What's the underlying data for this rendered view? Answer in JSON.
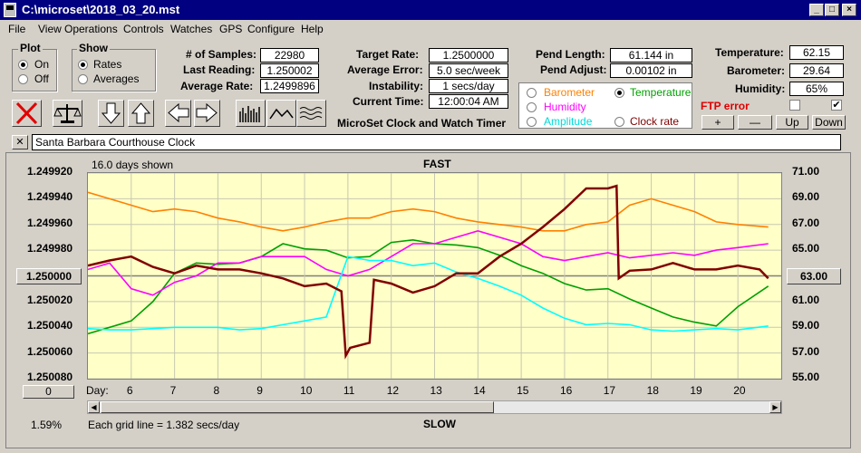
{
  "window": {
    "title": "C:\\microset\\2018_03_20.mst"
  },
  "menu": [
    "File",
    "View",
    "Operations",
    "Controls",
    "Watches",
    "GPS",
    "Configure",
    "Help"
  ],
  "plot": {
    "label": "Plot",
    "on": "On",
    "off": "Off",
    "selected": "On"
  },
  "show": {
    "label": "Show",
    "rates": "Rates",
    "averages": "Averages",
    "selected": "Rates"
  },
  "stats": {
    "samples_label": "# of Samples:",
    "samples": "22980",
    "last_label": "Last Reading:",
    "last": "1.250002",
    "avg_label": "Average Rate:",
    "avg": "1.2499896"
  },
  "target": {
    "target_label": "Target Rate:",
    "target": "1.2500000",
    "avgerr_label": "Average Error:",
    "avgerr": "5.0 sec/week",
    "instab_label": "Instability:",
    "instab": "1 secs/day",
    "time_label": "Current Time:",
    "time": "12:00:04 AM",
    "app_title": "MicroSet Clock and Watch Timer"
  },
  "pend": {
    "length_label": "Pend Length:",
    "length": "61.144 in",
    "adjust_label": "Pend Adjust:",
    "adjust": "0.00102 in"
  },
  "env": {
    "temp_label": "Temperature:",
    "temp": "62.15",
    "baro_label": "Barometer:",
    "baro": "29.64",
    "hum_label": "Humidity:",
    "hum": "65%",
    "ftp": "FTP error"
  },
  "overlay": {
    "barometer": "Barometer",
    "temperature": "Temperature",
    "humidity": "Humidity",
    "amplitude": "Amplitude",
    "clockrate": "Clock rate",
    "selected": "Temperature"
  },
  "adjust_buttons": {
    "plus": "+",
    "minus": "—",
    "up": "Up",
    "down": "Down"
  },
  "watch_name": "Santa Barbara Courthouse Clock",
  "close_x": "✕",
  "colors": {
    "barometer": "#ff8000",
    "temperature": "#00a000",
    "humidity": "#ff00ff",
    "amplitude": "#00ffff",
    "rate": "#800000"
  },
  "chart": {
    "days_shown": "16.0 days shown",
    "top_label": "FAST",
    "bottom_label": "SLOW",
    "grid_note": "Each grid line = 1.382 secs/day",
    "left_value": "1.250000",
    "right_value": "63.00",
    "left_bottom": "0",
    "percent": "1.59%"
  },
  "chart_data": {
    "type": "line",
    "xlabel": "Day:",
    "x_ticks": [
      "6",
      "7",
      "8",
      "9",
      "10",
      "11",
      "12",
      "13",
      "14",
      "15",
      "16",
      "17",
      "18",
      "19",
      "20"
    ],
    "y_left_ticks": [
      "1.249920",
      "1.249940",
      "1.249960",
      "1.249980",
      "1.250000",
      "1.250020",
      "1.250040",
      "1.250060",
      "1.250080"
    ],
    "y_right_ticks": [
      "71.00",
      "69.00",
      "67.00",
      "65.00",
      "63.00",
      "61.00",
      "59.00",
      "57.00",
      "55.00"
    ],
    "ylim_left": [
      1.24992,
      1.25008
    ],
    "ylim_right": [
      55,
      71
    ],
    "xlim": [
      5.0,
      21.0
    ],
    "series": [
      {
        "name": "Barometer",
        "color": "#ff8000",
        "x": [
          5.0,
          5.5,
          6,
          6.5,
          7,
          7.5,
          8,
          8.5,
          9,
          9.5,
          10,
          10.5,
          11,
          11.5,
          12,
          12.5,
          13,
          13.5,
          14,
          14.5,
          15,
          15.5,
          16,
          16.5,
          17,
          17.5,
          18,
          18.5,
          19,
          19.5,
          20,
          20.7
        ],
        "y": [
          1.249935,
          1.24994,
          1.249945,
          1.24995,
          1.249948,
          1.24995,
          1.249955,
          1.249958,
          1.249962,
          1.249965,
          1.249962,
          1.249958,
          1.249955,
          1.249955,
          1.24995,
          1.249948,
          1.24995,
          1.249955,
          1.249958,
          1.24996,
          1.249962,
          1.249965,
          1.249965,
          1.24996,
          1.249958,
          1.249945,
          1.24994,
          1.249945,
          1.24995,
          1.249958,
          1.24996,
          1.249962
        ]
      },
      {
        "name": "Temperature",
        "color": "#00a000",
        "x": [
          5.0,
          5.5,
          6,
          6.5,
          7,
          7.5,
          8,
          8.5,
          9,
          9.5,
          10,
          10.5,
          11,
          11.5,
          12,
          12.5,
          13,
          13.5,
          14,
          14.5,
          15,
          15.5,
          16,
          16.5,
          17,
          17.5,
          18,
          18.5,
          19,
          19.5,
          20,
          20.7
        ],
        "y": [
          58.5,
          59,
          59.5,
          61,
          63.2,
          64,
          63.9,
          64,
          64.5,
          65.5,
          65.1,
          65,
          64.4,
          64.5,
          65.6,
          65.8,
          65.5,
          65.4,
          65.2,
          64.6,
          63.8,
          63.2,
          62.4,
          61.9,
          62,
          61.2,
          60.5,
          59.8,
          59.4,
          59.1,
          60.6,
          62.2
        ]
      },
      {
        "name": "Humidity",
        "color": "#ff00ff",
        "x": [
          5.0,
          5.5,
          6,
          6.5,
          7,
          7.5,
          8,
          8.5,
          9,
          9.5,
          10,
          10.5,
          11,
          11.5,
          12,
          12.5,
          13,
          13.5,
          14,
          14.5,
          15,
          15.5,
          16,
          16.5,
          17,
          17.5,
          18,
          18.5,
          19,
          19.5,
          20,
          20.7
        ],
        "y": [
          63.5,
          64,
          62,
          61.5,
          62.5,
          63,
          64,
          64,
          64.5,
          64.5,
          64.5,
          63.5,
          63,
          63.5,
          64.5,
          65.5,
          65.5,
          66,
          66.5,
          66,
          65.5,
          64.5,
          64.2,
          64.5,
          64.8,
          64.4,
          64.6,
          64.8,
          64.6,
          65,
          65.2,
          65.5
        ]
      },
      {
        "name": "Amplitude",
        "color": "#00ffff",
        "x": [
          5.0,
          5.5,
          6,
          6.5,
          7,
          7.5,
          8,
          8.5,
          9,
          9.5,
          10,
          10.5,
          11,
          11.5,
          12,
          12.5,
          13,
          13.5,
          14,
          14.5,
          15,
          15.5,
          16,
          16.5,
          17,
          17.5,
          18,
          18.5,
          19,
          19.5,
          20,
          20.7
        ],
        "y": [
          1.250041,
          1.250042,
          1.250042,
          1.250041,
          1.25004,
          1.25004,
          1.25004,
          1.250042,
          1.250041,
          1.250038,
          1.250035,
          1.250032,
          1.249985,
          1.249988,
          1.249988,
          1.249992,
          1.24999,
          1.249997,
          1.250002,
          1.250008,
          1.250015,
          1.250025,
          1.250033,
          1.250038,
          1.250037,
          1.250038,
          1.250042,
          1.250043,
          1.250042,
          1.250041,
          1.250042,
          1.250039
        ]
      },
      {
        "name": "Clock rate",
        "color": "#800000",
        "x": [
          5.0,
          5.5,
          6,
          6.5,
          7,
          7.5,
          8,
          8.5,
          9,
          9.5,
          10,
          10.5,
          10.85,
          10.95,
          11.05,
          11.5,
          11.6,
          12,
          12.5,
          13,
          13.5,
          14,
          14.5,
          15,
          15.5,
          16,
          16.5,
          17,
          17.2,
          17.25,
          17.5,
          18,
          18.5,
          19,
          19.5,
          20,
          20.5,
          20.7
        ],
        "y": [
          1.249992,
          1.249988,
          1.249985,
          1.249993,
          1.249998,
          1.249992,
          1.249995,
          1.249995,
          1.249998,
          1.250002,
          1.250008,
          1.250006,
          1.250012,
          1.250062,
          1.250056,
          1.250052,
          1.250003,
          1.250006,
          1.250013,
          1.250008,
          1.249998,
          1.249998,
          1.249985,
          1.249975,
          1.249962,
          1.249948,
          1.249932,
          1.249932,
          1.24993,
          1.250002,
          1.249996,
          1.249995,
          1.24999,
          1.249995,
          1.249995,
          1.249992,
          1.249995,
          1.250002
        ]
      }
    ]
  }
}
